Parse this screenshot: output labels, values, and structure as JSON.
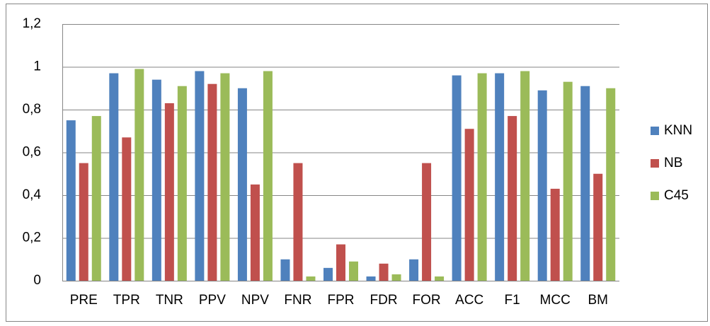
{
  "chart_data": {
    "type": "bar",
    "categories": [
      "PRE",
      "TPR",
      "TNR",
      "PPV",
      "NPV",
      "FNR",
      "FPR",
      "FDR",
      "FOR",
      "ACC",
      "F1",
      "MCC",
      "BM"
    ],
    "series": [
      {
        "name": "KNN",
        "color": "#4f81bd",
        "values": [
          0.75,
          0.97,
          0.94,
          0.98,
          0.9,
          0.1,
          0.06,
          0.02,
          0.1,
          0.96,
          0.97,
          0.89,
          0.91
        ]
      },
      {
        "name": "NB",
        "color": "#c0504d",
        "values": [
          0.55,
          0.67,
          0.83,
          0.92,
          0.45,
          0.55,
          0.17,
          0.08,
          0.55,
          0.71,
          0.77,
          0.43,
          0.5
        ]
      },
      {
        "name": "C45",
        "color": "#9bbb59",
        "values": [
          0.77,
          0.99,
          0.91,
          0.97,
          0.98,
          0.02,
          0.09,
          0.03,
          0.02,
          0.97,
          0.98,
          0.93,
          0.9
        ]
      }
    ],
    "ylim": [
      0,
      1.2
    ],
    "yticks": [
      0,
      {
        "value": 0.2,
        "label": "0,2"
      },
      {
        "value": 0.4,
        "label": "0,4"
      },
      {
        "value": 0.6,
        "label": "0,6"
      },
      {
        "value": 0.8,
        "label": "0,8"
      },
      1,
      {
        "value": 1.2,
        "label": "1,2"
      }
    ],
    "grid": true,
    "legend": "right"
  }
}
